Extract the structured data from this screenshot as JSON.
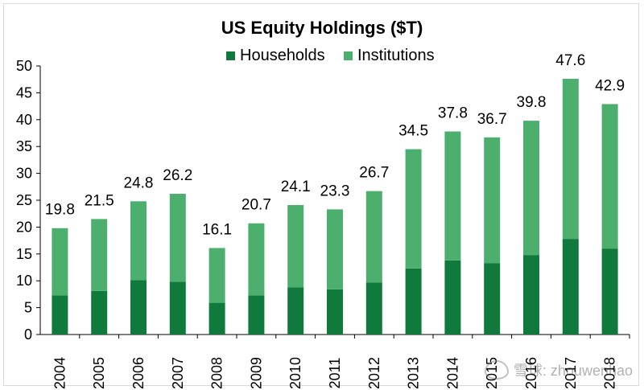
{
  "chart_data": {
    "type": "bar",
    "stacked": true,
    "title": "US Equity Holdings ($T)",
    "categories": [
      "2004",
      "2005",
      "2006",
      "2007",
      "2008",
      "2009",
      "2010",
      "2011",
      "2012",
      "2013",
      "2014",
      "2015",
      "2016",
      "2017",
      "2018"
    ],
    "series": [
      {
        "name": "Households",
        "color": "#0f7a3c",
        "values": [
          7.3,
          8.1,
          10.1,
          9.8,
          5.9,
          7.3,
          8.8,
          8.4,
          9.7,
          12.3,
          13.8,
          13.3,
          14.8,
          17.8,
          16.0
        ]
      },
      {
        "name": "Institutions",
        "color": "#4caf6d",
        "values": [
          12.5,
          13.4,
          14.7,
          16.4,
          10.2,
          13.4,
          15.3,
          14.9,
          17.0,
          22.2,
          24.0,
          23.4,
          25.0,
          29.8,
          26.9
        ]
      }
    ],
    "totals": [
      "19.8",
      "21.5",
      "24.8",
      "26.2",
      "16.1",
      "20.7",
      "24.1",
      "23.3",
      "26.7",
      "34.5",
      "37.8",
      "36.7",
      "39.8",
      "47.6",
      "42.9"
    ],
    "ylim": [
      0,
      50
    ],
    "yticks": [
      0,
      5,
      10,
      15,
      20,
      25,
      30,
      35,
      40,
      45,
      50
    ],
    "grid": false,
    "legend_position": "top-center"
  },
  "watermark": {
    "text": "雪球: zhouwenhao"
  }
}
